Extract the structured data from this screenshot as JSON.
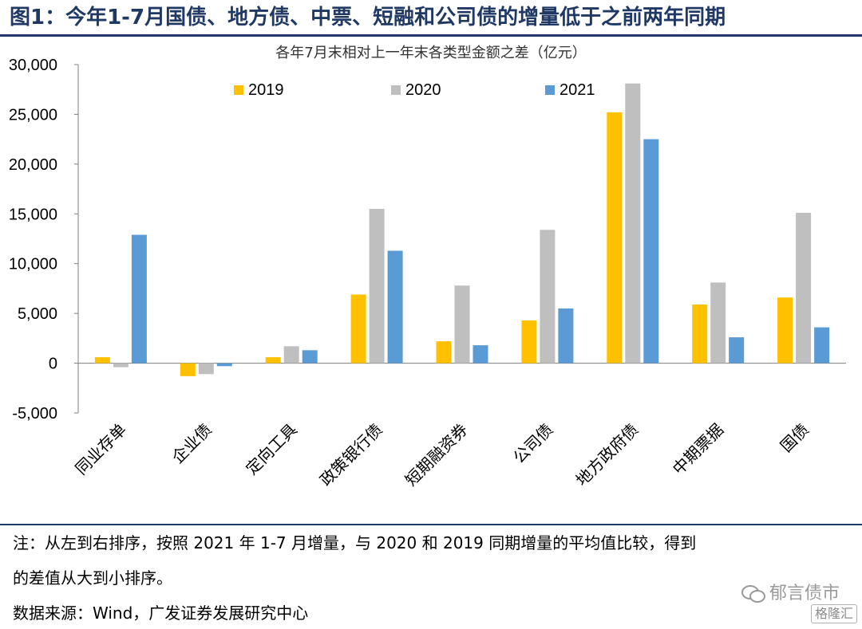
{
  "figure": {
    "title": "图1：今年1-7月国债、地方债、中票、短融和公司债的增量低于之前两年同期"
  },
  "notes": {
    "line1": "注：从左到右排序，按照 2021 年 1-7 月增量，与 2020 和 2019 同期增量的平均值比较，得到",
    "line2": "的差值从大到小排序。",
    "source": "数据来源：Wind，广发证券发展研究中心"
  },
  "watermark": {
    "text": "郁言债市",
    "icon": "wechat-icon",
    "badge": "格隆汇"
  },
  "chart_data": {
    "type": "bar",
    "title": "各年7月末相对上一年末各类型金额之差（亿元）",
    "xlabel": "",
    "ylabel": "",
    "categories": [
      "同业存单",
      "企业债",
      "定向工具",
      "政策银行债",
      "短期融资券",
      "公司债",
      "地方政府债",
      "中期票据",
      "国债"
    ],
    "series": [
      {
        "name": "2019",
        "color": "#ffc000",
        "values": [
          600,
          -1300,
          600,
          6900,
          2200,
          4300,
          25200,
          5900,
          6600
        ]
      },
      {
        "name": "2020",
        "color": "#bfbfbf",
        "values": [
          -400,
          -1100,
          1700,
          15500,
          7800,
          13400,
          28100,
          8100,
          15100
        ]
      },
      {
        "name": "2021",
        "color": "#5b9bd5",
        "values": [
          12900,
          -300,
          1300,
          11300,
          1800,
          5500,
          22500,
          2600,
          3600
        ]
      }
    ],
    "ylim": [
      -5000,
      30000
    ],
    "yticks": [
      -5000,
      0,
      5000,
      10000,
      15000,
      20000,
      25000,
      30000
    ],
    "ytick_labels": [
      "-5,000",
      "0",
      "5,000",
      "10,000",
      "15,000",
      "20,000",
      "25,000",
      "30,000"
    ],
    "legend_position": "top",
    "grid": false
  }
}
